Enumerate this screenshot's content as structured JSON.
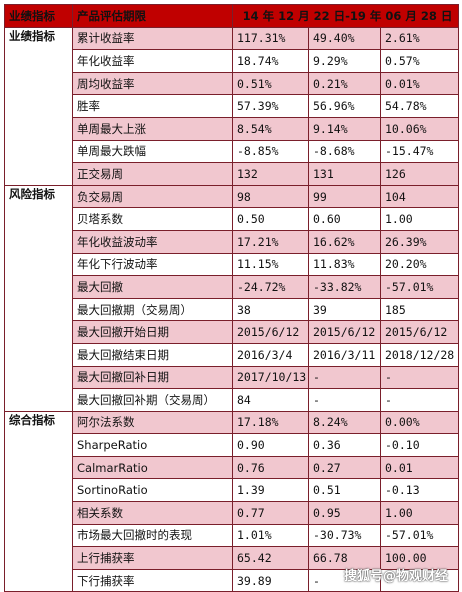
{
  "header": {
    "col_category": "业绩指标",
    "col_metric": "产品评估期限",
    "col_period": "14 年 12 月 22 日-19 年 06 月 28 日"
  },
  "sections": [
    {
      "category": "业绩指标",
      "rows": [
        {
          "metric": "累计收益率",
          "v1": "117.31%",
          "v2": "49.40%",
          "v3": "2.61%"
        },
        {
          "metric": "年化收益率",
          "v1": "18.74%",
          "v2": "9.29%",
          "v3": "0.57%"
        },
        {
          "metric": "周均收益率",
          "v1": "0.51%",
          "v2": "0.21%",
          "v3": "0.01%"
        },
        {
          "metric": "胜率",
          "v1": "57.39%",
          "v2": "56.96%",
          "v3": "54.78%"
        },
        {
          "metric": "单周最大上涨",
          "v1": "8.54%",
          "v2": "9.14%",
          "v3": "10.06%"
        },
        {
          "metric": "单周最大跌幅",
          "v1": "-8.85%",
          "v2": "-8.68%",
          "v3": "-15.47%"
        },
        {
          "metric": "正交易周",
          "v1": "132",
          "v2": "131",
          "v3": "126"
        }
      ]
    },
    {
      "category": "风险指标",
      "rows": [
        {
          "metric": "负交易周",
          "v1": "98",
          "v2": "99",
          "v3": "104"
        },
        {
          "metric": "贝塔系数",
          "v1": "0.50",
          "v2": "0.60",
          "v3": "1.00"
        },
        {
          "metric": "年化收益波动率",
          "v1": "17.21%",
          "v2": "16.62%",
          "v3": "26.39%"
        },
        {
          "metric": "年化下行波动率",
          "v1": "11.15%",
          "v2": "11.83%",
          "v3": "20.20%"
        },
        {
          "metric": "最大回撤",
          "v1": "-24.72%",
          "v2": "-33.82%",
          "v3": "-57.01%"
        },
        {
          "metric": "最大回撤期（交易周）",
          "v1": "38",
          "v2": "39",
          "v3": "185"
        },
        {
          "metric": "最大回撤开始日期",
          "v1": "2015/6/12",
          "v2": "2015/6/12",
          "v3": "2015/6/12"
        },
        {
          "metric": "最大回撤结束日期",
          "v1": "2016/3/4",
          "v2": "2016/3/11",
          "v3": "2018/12/28"
        },
        {
          "metric": "最大回撤回补日期",
          "v1": "2017/10/13",
          "v2": "-",
          "v3": "-"
        },
        {
          "metric": "最大回撤回补期（交易周）",
          "v1": "84",
          "v2": "-",
          "v3": "-"
        }
      ]
    },
    {
      "category": "综合指标",
      "rows": [
        {
          "metric": "阿尔法系数",
          "v1": "17.18%",
          "v2": "8.24%",
          "v3": "0.00%"
        },
        {
          "metric": "SharpeRatio",
          "v1": "0.90",
          "v2": "0.36",
          "v3": "-0.10"
        },
        {
          "metric": "CalmarRatio",
          "v1": "0.76",
          "v2": "0.27",
          "v3": "0.01"
        },
        {
          "metric": "SortinoRatio",
          "v1": "1.39",
          "v2": "0.51",
          "v3": "-0.13"
        },
        {
          "metric": "相关系数",
          "v1": "0.77",
          "v2": "0.95",
          "v3": "1.00"
        },
        {
          "metric": "市场最大回撤时的表现",
          "v1": "1.01%",
          "v2": "-30.73%",
          "v3": "-57.01%"
        },
        {
          "metric": "上行捕获率",
          "v1": "65.42",
          "v2": "66.78",
          "v3": "100.00"
        },
        {
          "metric": "下行捕获率",
          "v1": "39.89",
          "v2": "-",
          "v3": "-"
        }
      ]
    }
  ],
  "watermark": "搜狐号@物观财经",
  "colors": {
    "header_red": "#c00000",
    "row_shade": "#f1c7cf",
    "border": "#7a1f2b"
  }
}
